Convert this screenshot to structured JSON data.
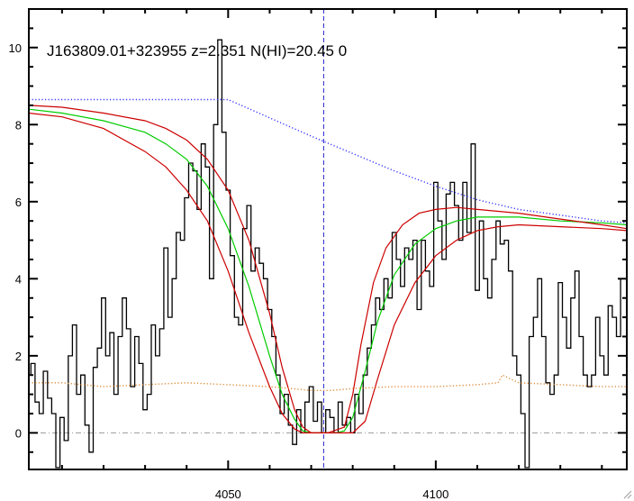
{
  "chart_data": {
    "type": "line",
    "title": "J163809.01+323955 z=2.351 N(HI)=20.45 0",
    "xlabel": "",
    "ylabel": "",
    "xlim": [
      4002,
      4146
    ],
    "ylim": [
      -0.95,
      11.0
    ],
    "x_ticks": [
      4050,
      4100
    ],
    "y_ticks": [
      0,
      2,
      4,
      6,
      8,
      10
    ],
    "grid": false,
    "center_line_x": 4073,
    "zero_line_y": 0,
    "colors": {
      "spectrum": "#000000",
      "fit": "#00cc00",
      "fit_bounds": "#cc0000",
      "continuum": "#3333ff",
      "error": "#dd8833",
      "center_line": "#2222cc",
      "zero_line": "#999999"
    },
    "series": [
      {
        "key": "spectrum",
        "step": true,
        "x": [
          4002,
          4003,
          4004,
          4005,
          4006,
          4007,
          4008,
          4009,
          4010,
          4011,
          4012,
          4013,
          4014,
          4015,
          4016,
          4017,
          4018,
          4019,
          4020,
          4021,
          4022,
          4023,
          4024,
          4025,
          4026,
          4027,
          4028,
          4029,
          4030,
          4031,
          4032,
          4033,
          4034,
          4035,
          4036,
          4037,
          4038,
          4039,
          4040,
          4041,
          4042,
          4043,
          4044,
          4045,
          4046,
          4047,
          4048,
          4049,
          4050,
          4051,
          4052,
          4053,
          4054,
          4055,
          4056,
          4057,
          4058,
          4059,
          4060,
          4061,
          4062,
          4063,
          4064,
          4065,
          4066,
          4067,
          4068,
          4069,
          4070,
          4071,
          4072,
          4073,
          4074,
          4075,
          4076,
          4077,
          4078,
          4079,
          4080,
          4081,
          4082,
          4083,
          4084,
          4085,
          4086,
          4087,
          4088,
          4089,
          4090,
          4091,
          4092,
          4093,
          4094,
          4095,
          4096,
          4097,
          4098,
          4099,
          4100,
          4101,
          4102,
          4103,
          4104,
          4105,
          4106,
          4107,
          4108,
          4109,
          4110,
          4111,
          4112,
          4113,
          4114,
          4115,
          4116,
          4117,
          4118,
          4119,
          4120,
          4121,
          4122,
          4123,
          4124,
          4125,
          4126,
          4127,
          4128,
          4129,
          4130,
          4131,
          4132,
          4133,
          4134,
          4135,
          4136,
          4137,
          4138,
          4139,
          4140,
          4141,
          4142,
          4143,
          4144,
          4145
        ],
        "y": [
          1.5,
          1.8,
          0.8,
          0.5,
          1.6,
          0.9,
          0.5,
          -0.9,
          0.4,
          -0.2,
          2.0,
          2.8,
          1.0,
          1.5,
          0.2,
          -0.5,
          1.7,
          2.2,
          3.5,
          2.0,
          2.6,
          1.0,
          2.5,
          3.5,
          2.7,
          1.2,
          2.5,
          1.8,
          0.6,
          1.0,
          2.8,
          2.0,
          2.7,
          4.8,
          3.0,
          4.0,
          5.2,
          5.0,
          6.1,
          7.0,
          6.8,
          5.8,
          7.5,
          6.9,
          4.0,
          8.0,
          10.2,
          7.8,
          6.3,
          4.6,
          3.0,
          2.8,
          5.3,
          5.9,
          4.2,
          4.8,
          4.4,
          4.0,
          3.2,
          2.5,
          1.5,
          0.5,
          1.0,
          0.2,
          -0.3,
          0.6,
          0.0,
          0.8,
          1.2,
          0.3,
          0.8,
          0.0,
          0.6,
          0.4,
          0.0,
          0.8,
          0.2,
          0.4,
          0.0,
          1.0,
          0.5,
          1.5,
          2.2,
          2.8,
          3.5,
          3.2,
          4.0,
          3.5,
          5.2,
          4.5,
          3.8,
          4.8,
          4.5,
          5.0,
          3.2,
          5.0,
          4.2,
          3.8,
          6.5,
          5.5,
          4.5,
          6.2,
          6.5,
          5.9,
          5.0,
          6.5,
          5.2,
          7.5,
          3.7,
          5.5,
          4.0,
          3.5,
          4.5,
          5.5,
          4.9,
          5.0,
          4.2,
          2.0,
          1.5,
          0.5,
          -0.9,
          2.5,
          3.0,
          4.0,
          2.5,
          1.3,
          1.0,
          1.5,
          3.9,
          3.0,
          2.2,
          3.5,
          4.2,
          2.5,
          1.5,
          1.2,
          1.5,
          3.0,
          2.0,
          1.5,
          3.3,
          3.0,
          2.5,
          4.0
        ]
      },
      {
        "key": "fit",
        "x": [
          4002,
          4010,
          4020,
          4030,
          4035,
          4040,
          4045,
          4050,
          4055,
          4060,
          4063,
          4066,
          4068,
          4070,
          4072,
          4074,
          4076,
          4078,
          4080,
          4083,
          4086,
          4090,
          4095,
          4100,
          4105,
          4110,
          4120,
          4130,
          4140,
          4146
        ],
        "y": [
          8.4,
          8.3,
          8.1,
          7.8,
          7.5,
          7.1,
          6.4,
          5.3,
          3.8,
          2.0,
          1.0,
          0.35,
          0.05,
          0.0,
          0.0,
          0.0,
          0.0,
          0.05,
          0.4,
          1.6,
          2.9,
          4.1,
          4.9,
          5.3,
          5.5,
          5.6,
          5.6,
          5.5,
          5.45,
          5.4
        ]
      },
      {
        "key": "fit_upper",
        "x": [
          4002,
          4010,
          4020,
          4030,
          4035,
          4040,
          4045,
          4050,
          4055,
          4060,
          4063,
          4066,
          4068,
          4070,
          4074,
          4078,
          4080,
          4082,
          4085,
          4088,
          4092,
          4096,
          4100,
          4105,
          4110,
          4120,
          4130,
          4140,
          4146
        ],
        "y": [
          8.5,
          8.45,
          8.3,
          8.1,
          7.9,
          7.6,
          7.1,
          6.3,
          5.0,
          3.1,
          1.7,
          0.6,
          0.15,
          0.0,
          0.0,
          0.15,
          1.0,
          2.3,
          3.9,
          4.8,
          5.4,
          5.7,
          5.8,
          5.85,
          5.8,
          5.7,
          5.55,
          5.4,
          5.3
        ]
      },
      {
        "key": "fit_lower",
        "x": [
          4002,
          4010,
          4020,
          4030,
          4035,
          4040,
          4045,
          4050,
          4055,
          4060,
          4063,
          4066,
          4068,
          4070,
          4074,
          4078,
          4080,
          4083,
          4086,
          4090,
          4095,
          4100,
          4105,
          4110,
          4115,
          4120,
          4130,
          4140,
          4146
        ],
        "y": [
          8.3,
          8.2,
          7.9,
          7.3,
          6.9,
          6.3,
          5.5,
          4.2,
          2.6,
          1.2,
          0.5,
          0.1,
          0.0,
          0.0,
          0.0,
          0.0,
          0.0,
          0.3,
          1.4,
          2.8,
          3.9,
          4.6,
          5.0,
          5.25,
          5.35,
          5.4,
          5.35,
          5.3,
          5.25
        ]
      },
      {
        "key": "continuum",
        "dash": "dotted",
        "x": [
          4002,
          4050,
          4070,
          4080,
          4090,
          4100,
          4110,
          4120,
          4130,
          4140,
          4146
        ],
        "y": [
          8.65,
          8.65,
          7.7,
          7.25,
          6.8,
          6.4,
          6.05,
          5.8,
          5.65,
          5.5,
          5.45
        ]
      },
      {
        "key": "error",
        "dash": "dotted",
        "x": [
          4002,
          4010,
          4020,
          4030,
          4040,
          4050,
          4060,
          4065,
          4070,
          4075,
          4080,
          4090,
          4100,
          4110,
          4115,
          4116,
          4120,
          4130,
          4140,
          4146
        ],
        "y": [
          1.3,
          1.3,
          1.2,
          1.25,
          1.3,
          1.25,
          1.2,
          1.15,
          1.1,
          1.1,
          1.15,
          1.2,
          1.2,
          1.25,
          1.3,
          1.5,
          1.3,
          1.25,
          1.2,
          1.2
        ]
      }
    ]
  }
}
